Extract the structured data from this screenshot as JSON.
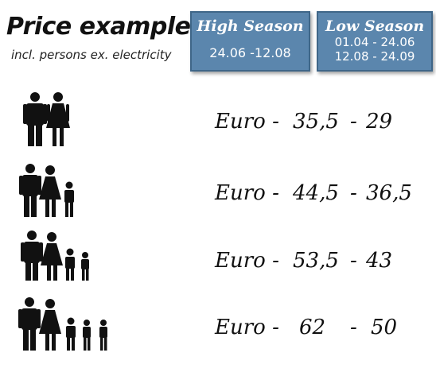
{
  "header": {
    "title": "Price examples",
    "subtitle": "incl. persons ex. electricity"
  },
  "seasons": {
    "high": {
      "title": "High Season",
      "dates": [
        "24.06 -12.08"
      ]
    },
    "low": {
      "title": "Low Season",
      "dates": [
        "01.04 - 24.06",
        "12.08 - 24.09"
      ]
    }
  },
  "accent_color": "#5b86ad",
  "rows": [
    {
      "icon": "two-adults-icon",
      "currency": "Euro  -",
      "high": "35,5",
      "dash": "-",
      "low": "29"
    },
    {
      "icon": "two-adults-one-child-icon",
      "currency": "Euro  -",
      "high": "44,5",
      "dash": "-",
      "low": "36,5"
    },
    {
      "icon": "two-adults-two-children-icon",
      "currency": "Euro  -",
      "high": "53,5",
      "dash": "-",
      "low": "43"
    },
    {
      "icon": "two-adults-three-children-icon",
      "currency": "Euro  -",
      "high": "62",
      "dash": "-",
      "low": "50"
    }
  ]
}
